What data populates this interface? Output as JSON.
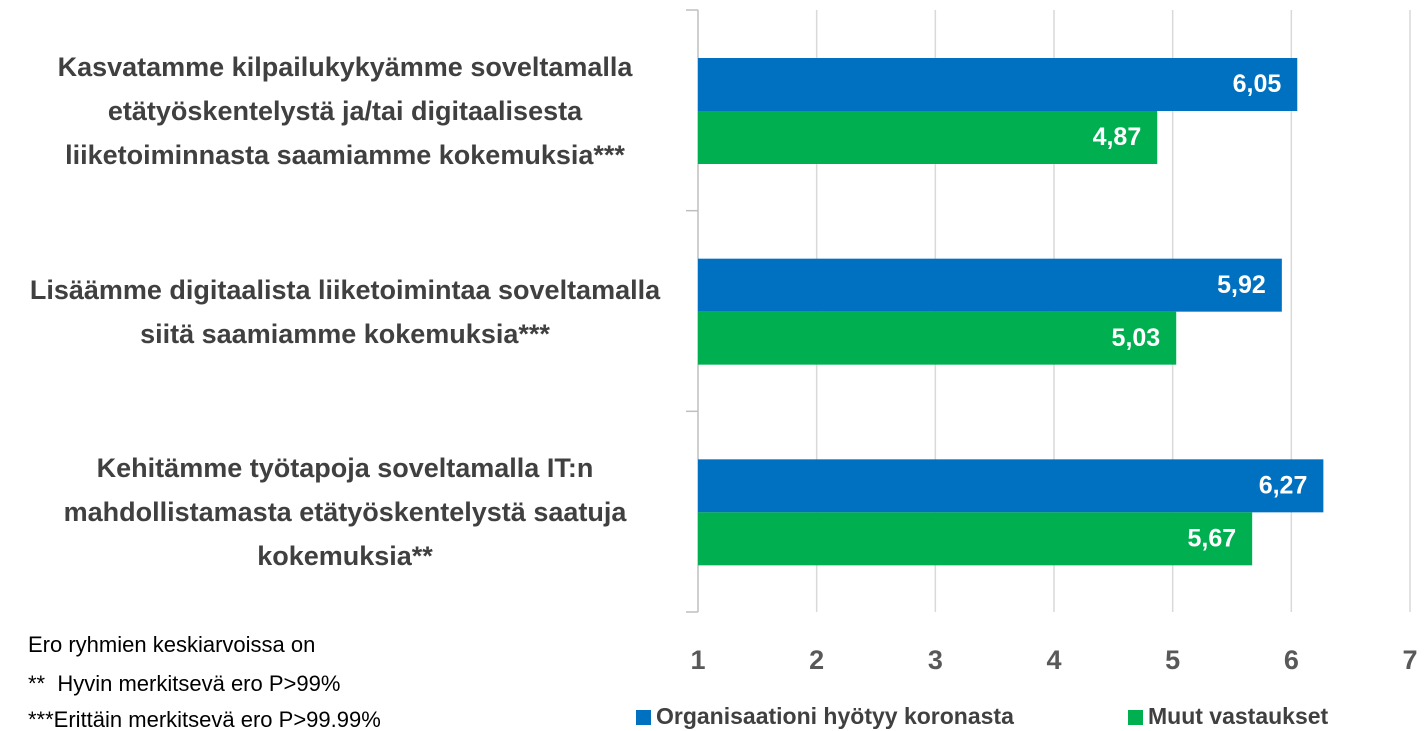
{
  "chart_data": {
    "type": "bar",
    "orientation": "horizontal",
    "categories": [
      "Kasvatamme kilpailukykyämme soveltamalla etätyöskentelystä ja/tai digitaalisesta liiketoiminnasta saamiamme kokemuksia***",
      "Lisäämme digitaalista liiketoimintaa soveltamalla siitä saamiamme kokemuksia***",
      "Kehitämme työtapoja soveltamalla IT:n mahdollistamasta etätyöskentelystä saatuja kokemuksia**"
    ],
    "series": [
      {
        "name": "Organisaationi hyötyy koronasta",
        "color": "#0070c0",
        "values": [
          6.05,
          5.92,
          6.27
        ],
        "value_labels": [
          "6,05",
          "5,92",
          "6,27"
        ]
      },
      {
        "name": "Muut vastaukset",
        "color": "#00b050",
        "values": [
          4.87,
          5.03,
          5.67
        ],
        "value_labels": [
          "4,87",
          "5,03",
          "5,67"
        ]
      }
    ],
    "xlim": [
      1,
      7
    ],
    "xticks": [
      1,
      2,
      3,
      4,
      5,
      6,
      7
    ],
    "grid": true,
    "legend": "bottom",
    "annotations": [
      "Ero ryhmien keskiarvoissa on",
      "**  Hyvin merkitsevä ero P>99%",
      "***Erittäin merkitsevä ero P>99.99%"
    ]
  }
}
